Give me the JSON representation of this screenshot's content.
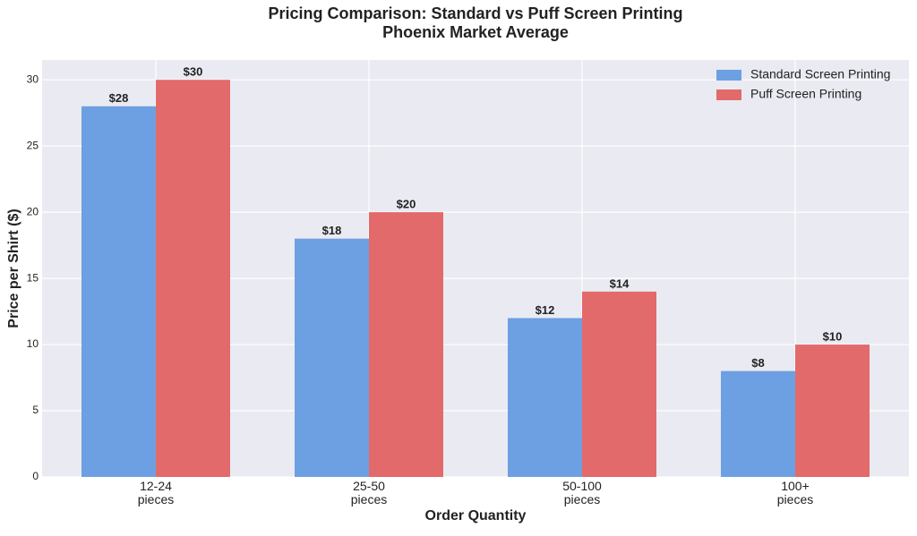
{
  "chart_data": {
    "type": "bar",
    "title": "Pricing Comparison: Standard vs Puff Screen Printing",
    "subtitle": "Phoenix Market Average",
    "x_label": "Order Quantity",
    "y_label": "Price per Shirt ($)",
    "categories": [
      "12-24\npieces",
      "25-50\npieces",
      "50-100\npieces",
      "100+\npieces"
    ],
    "series": [
      {
        "name": "Standard Screen Printing",
        "color": "#6ca0e2",
        "values": [
          28,
          18,
          12,
          8
        ],
        "value_labels": [
          "$28",
          "$18",
          "$12",
          "$8"
        ]
      },
      {
        "name": "Puff Screen Printing",
        "color": "#e36a6a",
        "values": [
          30,
          20,
          14,
          10
        ],
        "value_labels": [
          "$30",
          "$20",
          "$14",
          "$10"
        ]
      }
    ],
    "ylim": [
      0,
      31.5
    ],
    "yticks": [
      0,
      5,
      10,
      15,
      20,
      25,
      30
    ],
    "grid": true,
    "legend": "upper right"
  }
}
